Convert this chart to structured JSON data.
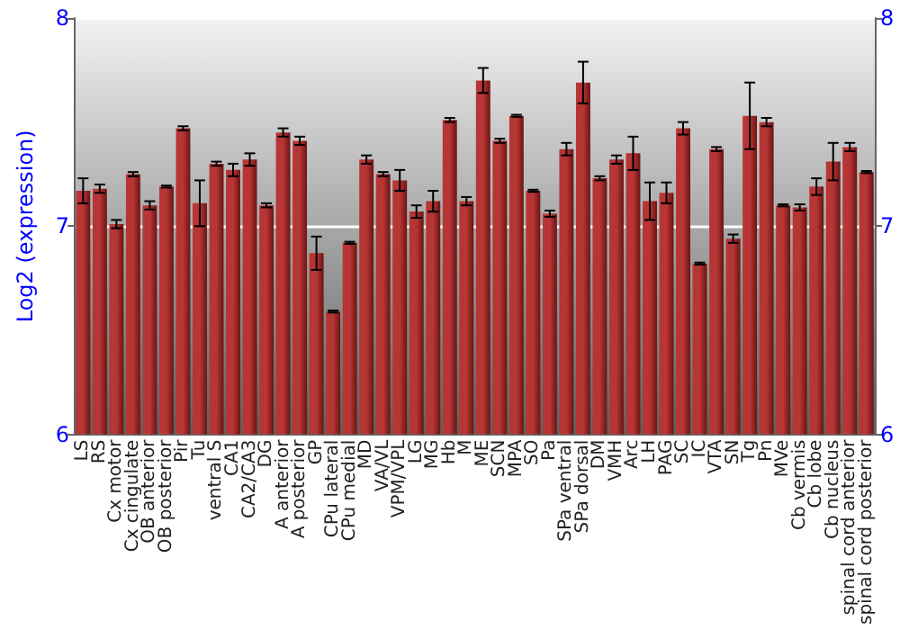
{
  "chart_data": {
    "type": "bar",
    "ylabel": "Log2 (expression)",
    "categories": [
      "LS",
      "RS",
      "Cx motor",
      "Cx cingulate",
      "OB anterior",
      "OB posterior",
      "Pir",
      "Tu",
      "ventral S",
      "CA1",
      "CA2/CA3",
      "DG",
      "A anterior",
      "A posterior",
      "GP",
      "CPu lateral",
      "CPu medial",
      "MD",
      "VA/VL",
      "VPM/VPL",
      "LG",
      "MG",
      "Hb",
      "M",
      "ME",
      "SCN",
      "MPA",
      "SO",
      "Pa",
      "SPa ventral",
      "SPa dorsal",
      "DM",
      "VMH",
      "Arc",
      "LH",
      "PAG",
      "SC",
      "IC",
      "VTA",
      "SN",
      "Tg",
      "Pn",
      "MVe",
      "Cb vermis",
      "Cb lobe",
      "Cb nucleus",
      "spinal cord anterior",
      "spinal cord posterior"
    ],
    "values": [
      7.17,
      7.18,
      7.01,
      7.25,
      7.1,
      7.19,
      7.47,
      7.11,
      7.3,
      7.27,
      7.32,
      7.1,
      7.45,
      7.41,
      6.87,
      6.59,
      6.92,
      7.32,
      7.25,
      7.22,
      7.07,
      7.12,
      7.51,
      7.12,
      7.7,
      7.41,
      7.53,
      7.17,
      7.06,
      7.37,
      7.69,
      7.23,
      7.32,
      7.35,
      7.12,
      7.16,
      7.47,
      6.82,
      7.37,
      6.94,
      7.53,
      7.5,
      7.1,
      7.09,
      7.19,
      7.31,
      7.38,
      7.26
    ],
    "errors": [
      0.06,
      0.02,
      0.02,
      0.01,
      0.02,
      0.005,
      0.01,
      0.11,
      0.01,
      0.03,
      0.03,
      0.01,
      0.02,
      0.02,
      0.08,
      0.005,
      0.005,
      0.02,
      0.01,
      0.05,
      0.03,
      0.05,
      0.01,
      0.02,
      0.06,
      0.01,
      0.005,
      0.005,
      0.015,
      0.03,
      0.1,
      0.01,
      0.02,
      0.08,
      0.09,
      0.05,
      0.03,
      0.005,
      0.01,
      0.02,
      0.16,
      0.02,
      0.005,
      0.015,
      0.04,
      0.09,
      0.02,
      0.005
    ],
    "color": "#b83535",
    "ylim": [
      6,
      8
    ],
    "yticks": [
      6,
      7,
      8
    ],
    "y2lim": [
      6,
      8
    ],
    "y2ticks": [
      6,
      7,
      8
    ],
    "grid": "y"
  }
}
